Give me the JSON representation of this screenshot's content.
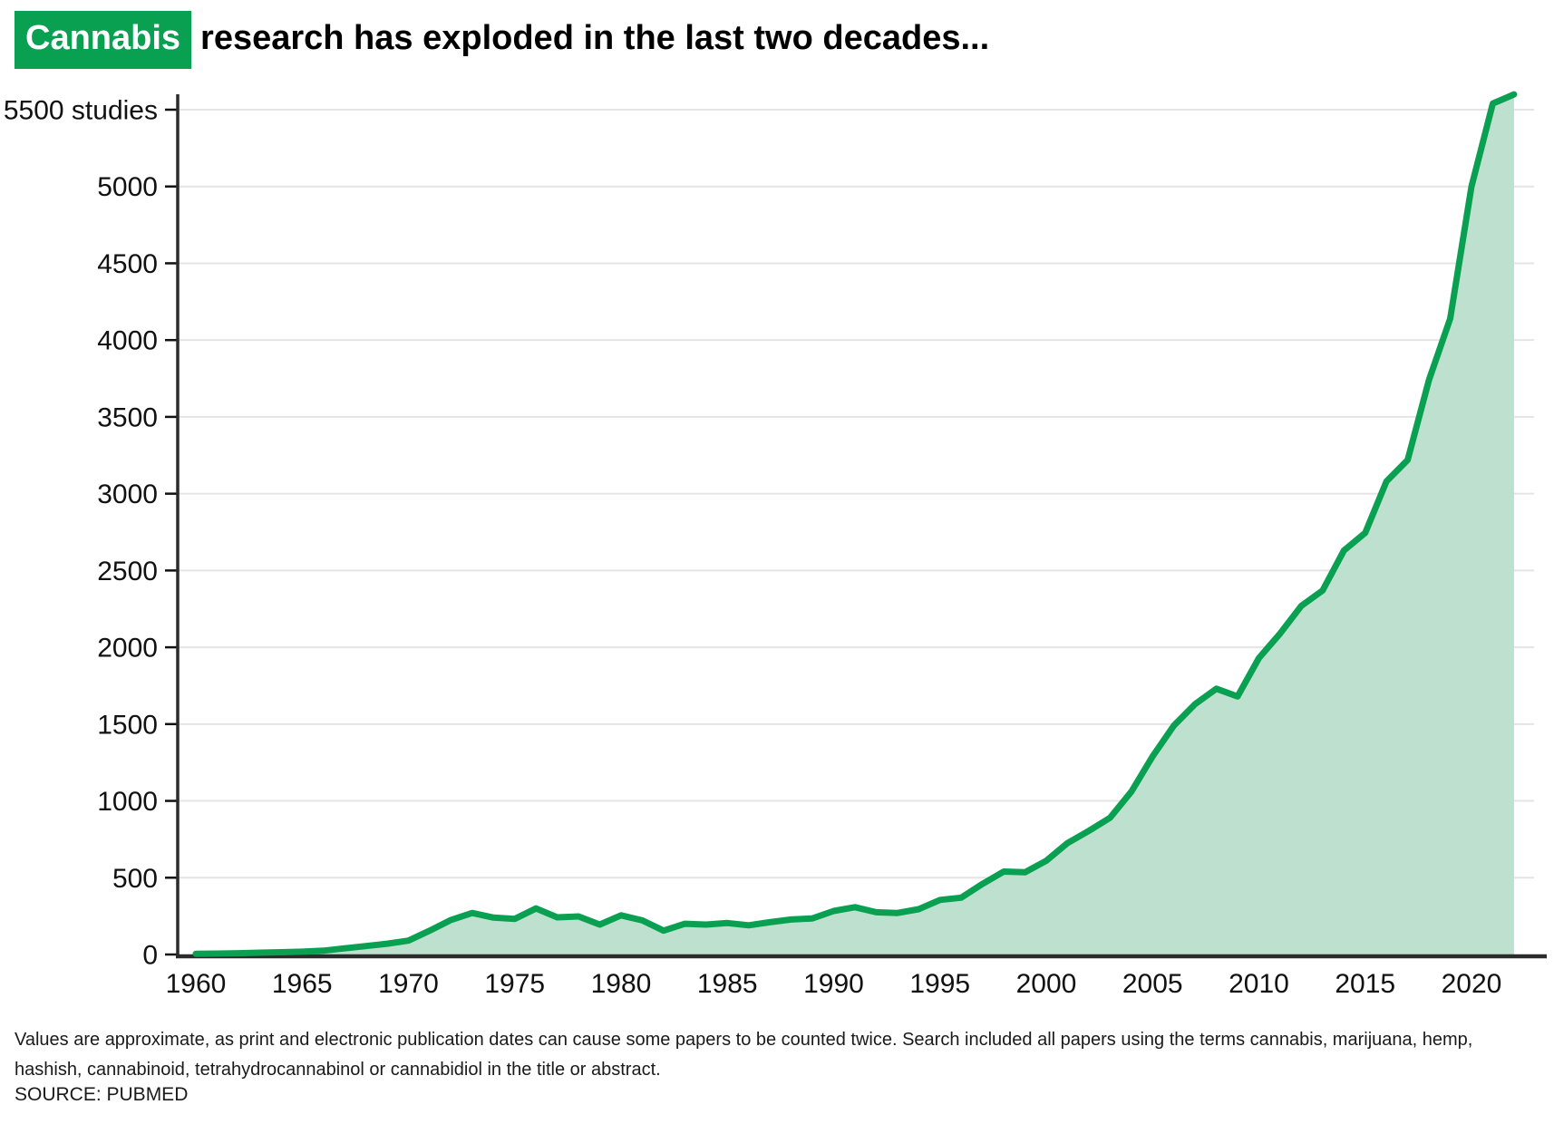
{
  "title": {
    "highlight": "Cannabis",
    "rest": "research has exploded in the last two decades..."
  },
  "footnote": {
    "line1": "Values are approximate, as print and electronic publication dates can cause some papers to be counted twice. Search included all papers using the terms cannabis, marijuana, hemp,",
    "line2": "hashish, cannabinoid, tetrahydrocannabinol or cannabidiol in the title or abstract."
  },
  "source": "SOURCE: PUBMED",
  "colors": {
    "line": "#0aa052",
    "fill": "#bde1ce",
    "badge": "#0aa052",
    "grid": "#e4e4e4",
    "axis": "#2b2b2b",
    "label": "#111111"
  },
  "chart_data": {
    "type": "area",
    "title": "Cannabis research has exploded in the last two decades...",
    "xlabel": "",
    "ylabel": "studies",
    "ylim": [
      0,
      5600
    ],
    "grid": "horizontal",
    "legend_position": "none",
    "x": [
      1960,
      1961,
      1962,
      1963,
      1964,
      1965,
      1966,
      1967,
      1968,
      1969,
      1970,
      1971,
      1972,
      1973,
      1974,
      1975,
      1976,
      1977,
      1978,
      1979,
      1980,
      1981,
      1982,
      1983,
      1984,
      1985,
      1986,
      1987,
      1988,
      1989,
      1990,
      1991,
      1992,
      1993,
      1994,
      1995,
      1996,
      1997,
      1998,
      1999,
      2000,
      2001,
      2002,
      2003,
      2004,
      2005,
      2006,
      2007,
      2008,
      2009,
      2010,
      2011,
      2012,
      2013,
      2014,
      2015,
      2016,
      2017,
      2018,
      2019,
      2020,
      2021,
      2022
    ],
    "values": [
      5,
      6,
      8,
      12,
      15,
      18,
      25,
      40,
      55,
      70,
      90,
      155,
      225,
      270,
      240,
      232,
      300,
      242,
      248,
      195,
      255,
      222,
      155,
      200,
      195,
      205,
      190,
      210,
      228,
      235,
      283,
      308,
      275,
      270,
      295,
      355,
      370,
      460,
      540,
      535,
      610,
      725,
      805,
      890,
      1060,
      1290,
      1490,
      1630,
      1730,
      1680,
      1930,
      2090,
      2270,
      2370,
      2630,
      2745,
      3080,
      3220,
      3740,
      4140,
      5000,
      5540,
      5600
    ],
    "x_ticks": [
      {
        "value": 1960,
        "label": "1960"
      },
      {
        "value": 1965,
        "label": "1965"
      },
      {
        "value": 1970,
        "label": "1970"
      },
      {
        "value": 1975,
        "label": "1975"
      },
      {
        "value": 1980,
        "label": "1980"
      },
      {
        "value": 1985,
        "label": "1985"
      },
      {
        "value": 1990,
        "label": "1990"
      },
      {
        "value": 1995,
        "label": "1995"
      },
      {
        "value": 2000,
        "label": "2000"
      },
      {
        "value": 2005,
        "label": "2005"
      },
      {
        "value": 2010,
        "label": "2010"
      },
      {
        "value": 2015,
        "label": "2015"
      },
      {
        "value": 2020,
        "label": "2020"
      }
    ],
    "y_ticks": [
      {
        "value": 0,
        "label": "0"
      },
      {
        "value": 500,
        "label": "500"
      },
      {
        "value": 1000,
        "label": "1000"
      },
      {
        "value": 1500,
        "label": "1500"
      },
      {
        "value": 2000,
        "label": "2000"
      },
      {
        "value": 2500,
        "label": "2500"
      },
      {
        "value": 3000,
        "label": "3000"
      },
      {
        "value": 3500,
        "label": "3500"
      },
      {
        "value": 4000,
        "label": "4000"
      },
      {
        "value": 4500,
        "label": "4500"
      },
      {
        "value": 5000,
        "label": "5000"
      },
      {
        "value": 5500,
        "label": "5500 studies"
      }
    ]
  }
}
